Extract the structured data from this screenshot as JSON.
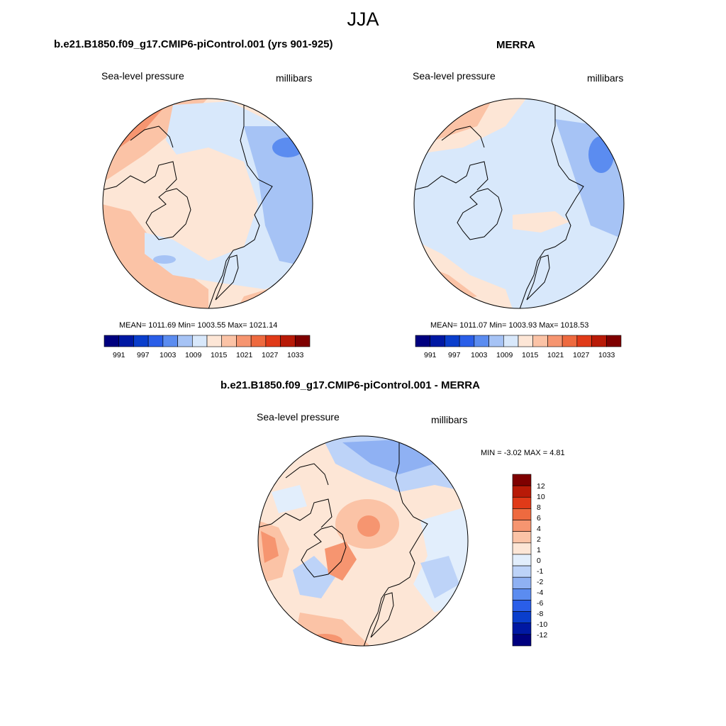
{
  "figure": {
    "title": "JJA"
  },
  "colors": {
    "abs_scale": [
      "#00007f",
      "#0018a3",
      "#0a3ecc",
      "#2a5ee8",
      "#5b8cf0",
      "#a6c3f5",
      "#d8e8fb",
      "#fde6d6",
      "#fbc3a6",
      "#f69570",
      "#ee6a3f",
      "#e03a18",
      "#b81a07",
      "#7f0000"
    ],
    "diff_scale": [
      "#00007f",
      "#0018a3",
      "#0a3ecc",
      "#2a5ee8",
      "#5b8cf0",
      "#8fb1f3",
      "#bdd3f8",
      "#e2eefc",
      "#fde6d6",
      "#fbc3a6",
      "#f69570",
      "#ee6a3f",
      "#e03a18",
      "#b81a07",
      "#7f0000"
    ],
    "coastline": "#000000",
    "ocean_fill": "#d8e8fb"
  },
  "panels": {
    "model": {
      "title": "b.e21.B1850.f09_g17.CMIP6-piControl.001 (yrs 901-925)",
      "left_label": "Sea-level pressure",
      "right_label": "millibars",
      "stats": "MEAN= 1011.69  Min= 1003.55  Max= 1021.14",
      "colorbar_ticks": [
        "991",
        "997",
        "1003",
        "1009",
        "1015",
        "1021",
        "1027",
        "1033"
      ],
      "field": "mostly-high"
    },
    "obs": {
      "title": "MERRA",
      "left_label": "Sea-level pressure",
      "right_label": "millibars",
      "stats": "MEAN= 1011.07  Min= 1003.93  Max= 1018.53",
      "colorbar_ticks": [
        "991",
        "997",
        "1003",
        "1009",
        "1015",
        "1021",
        "1027",
        "1033"
      ],
      "field": "mostly-low"
    },
    "diff": {
      "title": "b.e21.B1850.f09_g17.CMIP6-piControl.001 - MERRA",
      "left_label": "Sea-level pressure",
      "right_label": "millibars",
      "stats": "MIN =  -3.02 MAX =   4.81",
      "colorbar_ticks": [
        "12",
        "10",
        "8",
        "6",
        "4",
        "2",
        "1",
        "0",
        "-1",
        "-2",
        "-4",
        "-6",
        "-8",
        "-10",
        "-12"
      ]
    }
  }
}
